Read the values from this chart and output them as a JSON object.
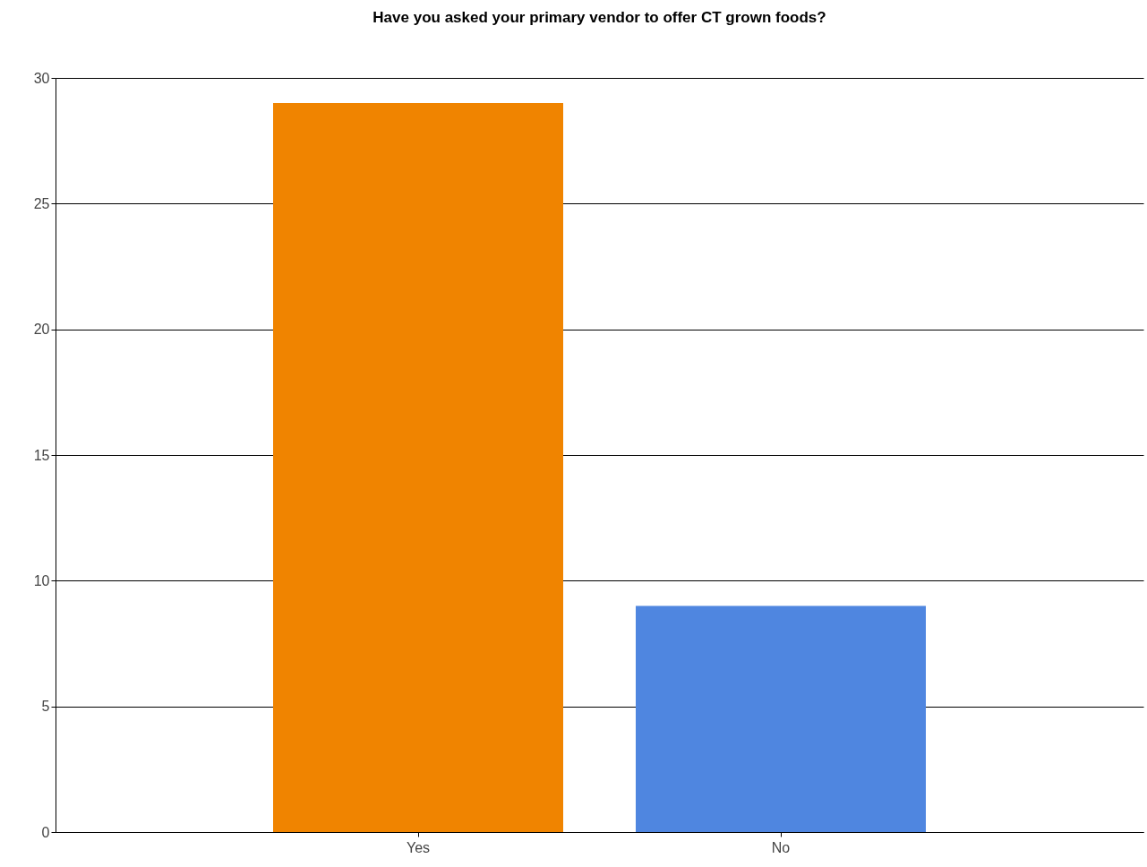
{
  "chart_data": {
    "type": "bar",
    "title": "Have you asked your primary vendor to offer CT grown foods?",
    "categories": [
      "Yes",
      "No"
    ],
    "values": [
      29,
      9
    ],
    "colors": [
      "#f08400",
      "#4f86e0"
    ],
    "ylim": [
      0,
      30
    ],
    "yticks": [
      0,
      5,
      10,
      15,
      20,
      25,
      30
    ],
    "grid": "y",
    "legend": false
  }
}
